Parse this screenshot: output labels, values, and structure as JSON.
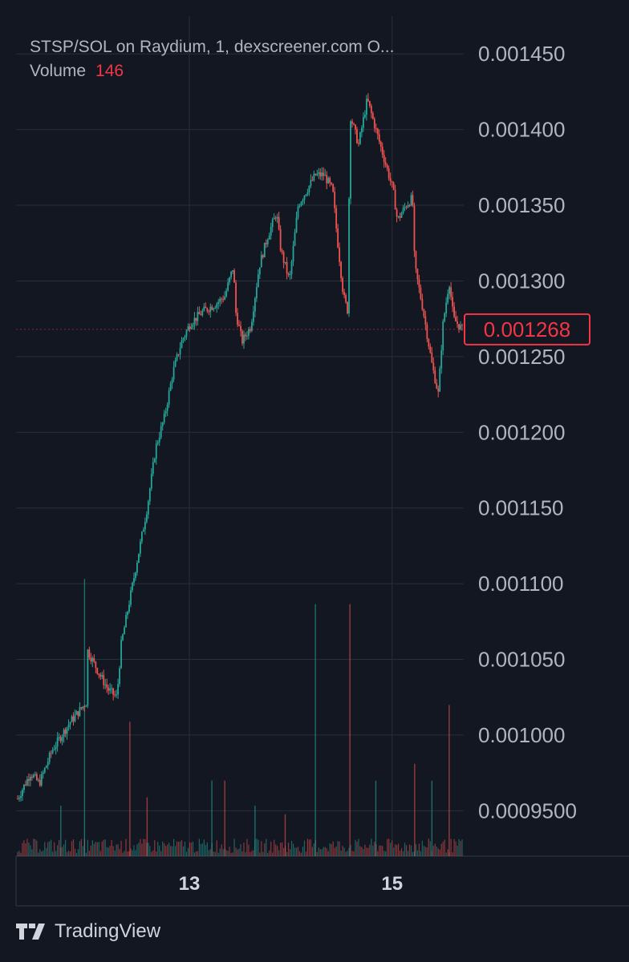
{
  "legend": {
    "symbol_line": "STSP/SOL on Raydium, 1, dexscreener.com  O...",
    "volume_label": "Volume",
    "volume_value": "146"
  },
  "brand": {
    "name": "TradingView",
    "icon": "tradingview-logo-icon"
  },
  "colors": {
    "background": "#131722",
    "grid": "#2a2e39",
    "up": "#26a69a",
    "down": "#ef5350",
    "last_price": "#f23645"
  },
  "chart_data": {
    "type": "candlestick",
    "title": "STSP/SOL on Raydium, 1, dexscreener.com",
    "y_ticks": [
      "0.001450",
      "0.001400",
      "0.001350",
      "0.001300",
      "0.001250",
      "0.001200",
      "0.001150",
      "0.001100",
      "0.001050",
      "0.001000",
      "0.0009500"
    ],
    "y_tick_values": [
      0.00145,
      0.0014,
      0.00135,
      0.0013,
      0.00125,
      0.0012,
      0.00115,
      0.0011,
      0.00105,
      0.001,
      0.00095
    ],
    "ylim": [
      0.00092,
      0.001475
    ],
    "x_ticks": [
      "13",
      "15"
    ],
    "x_tick_positions": [
      0.387,
      0.84
    ],
    "last_price": "0.001268",
    "last_price_value": 0.001268,
    "grid": true,
    "price_path": [
      [
        0.0,
        0.000958
      ],
      [
        0.03,
        0.000975
      ],
      [
        0.05,
        0.000968
      ],
      [
        0.08,
        0.00099
      ],
      [
        0.12,
        0.001008
      ],
      [
        0.16,
        0.001022
      ],
      [
        0.155,
        0.00106
      ],
      [
        0.19,
        0.00104
      ],
      [
        0.21,
        0.00103
      ],
      [
        0.23,
        0.001025
      ],
      [
        0.24,
        0.00106
      ],
      [
        0.26,
        0.00109
      ],
      [
        0.28,
        0.00112
      ],
      [
        0.3,
        0.00115
      ],
      [
        0.32,
        0.00119
      ],
      [
        0.34,
        0.00121
      ],
      [
        0.36,
        0.00124
      ],
      [
        0.38,
        0.00126
      ],
      [
        0.4,
        0.001272
      ],
      [
        0.43,
        0.00128
      ],
      [
        0.46,
        0.001285
      ],
      [
        0.48,
        0.00129
      ],
      [
        0.5,
        0.00131
      ],
      [
        0.505,
        0.00128
      ],
      [
        0.52,
        0.00126
      ],
      [
        0.54,
        0.00127
      ],
      [
        0.56,
        0.00131
      ],
      [
        0.58,
        0.00133
      ],
      [
        0.6,
        0.001345
      ],
      [
        0.61,
        0.00132
      ],
      [
        0.63,
        0.0013
      ],
      [
        0.65,
        0.00135
      ],
      [
        0.67,
        0.00136
      ],
      [
        0.69,
        0.00137
      ],
      [
        0.71,
        0.00137
      ],
      [
        0.73,
        0.00136
      ],
      [
        0.74,
        0.00133
      ],
      [
        0.755,
        0.00129
      ],
      [
        0.765,
        0.00128
      ],
      [
        0.77,
        0.00141
      ],
      [
        0.79,
        0.00139
      ],
      [
        0.81,
        0.00142
      ],
      [
        0.83,
        0.0014
      ],
      [
        0.85,
        0.00138
      ],
      [
        0.87,
        0.00136
      ],
      [
        0.88,
        0.00134
      ],
      [
        0.9,
        0.00135
      ],
      [
        0.915,
        0.001355
      ],
      [
        0.92,
        0.00131
      ],
      [
        0.94,
        0.00128
      ],
      [
        0.96,
        0.001245
      ],
      [
        0.975,
        0.001225
      ],
      [
        0.985,
        0.00127
      ],
      [
        1.0,
        0.0013
      ],
      [
        1.01,
        0.001275
      ],
      [
        1.03,
        0.001268
      ]
    ],
    "volume_spikes": [
      [
        0.155,
        0.33
      ],
      [
        0.26,
        0.16
      ],
      [
        0.45,
        0.09
      ],
      [
        0.48,
        0.09
      ],
      [
        0.69,
        0.3
      ],
      [
        0.77,
        0.3
      ],
      [
        0.83,
        0.09
      ],
      [
        0.92,
        0.11
      ],
      [
        0.96,
        0.09
      ],
      [
        1.0,
        0.18
      ],
      [
        0.1,
        0.06
      ],
      [
        0.3,
        0.07
      ],
      [
        0.55,
        0.06
      ],
      [
        0.62,
        0.05
      ]
    ]
  }
}
